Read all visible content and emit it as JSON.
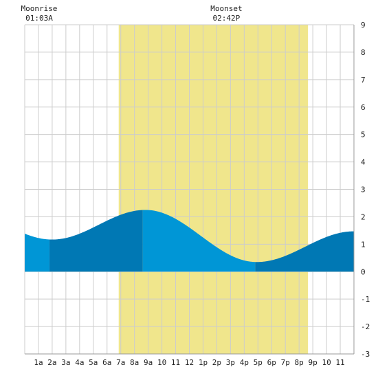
{
  "chart_data": {
    "type": "area",
    "x_ticks": [
      "1a",
      "2a",
      "3a",
      "4a",
      "5a",
      "6a",
      "7a",
      "8a",
      "9a",
      "10",
      "11",
      "12",
      "1p",
      "2p",
      "3p",
      "4p",
      "5p",
      "6p",
      "7p",
      "8p",
      "9p",
      "10",
      "11"
    ],
    "y_ticks": [
      "9",
      "8",
      "7",
      "6",
      "5",
      "4",
      "3",
      "2",
      "1",
      "0",
      "-1",
      "-2",
      "-3"
    ],
    "ylim": [
      -3,
      9
    ],
    "xlim_hours": [
      0,
      24
    ],
    "grid": true,
    "daylight_band_hours": [
      6.85,
      20.65
    ],
    "tide_extrema": [
      {
        "hour": 2.0,
        "height": 1.17
      },
      {
        "hour": 8.8,
        "height": 2.25
      },
      {
        "hour": 16.9,
        "height": 0.35
      },
      {
        "hour": 24.0,
        "height": 1.47
      }
    ],
    "shade_breaks_hours": [
      1.8,
      8.6,
      16.8
    ],
    "moon_events": [
      {
        "label": "Moonrise",
        "time": "01:03A",
        "hour": 1.05
      },
      {
        "label": "Moonset",
        "time": "02:42P",
        "hour": 14.7
      }
    ]
  },
  "colors": {
    "background": "#ffffff",
    "grid": "#cccccc",
    "daylight": "#f0e68c",
    "tide_light": "#0096d6",
    "tide_dark": "#0078b4",
    "text": "#222222"
  }
}
